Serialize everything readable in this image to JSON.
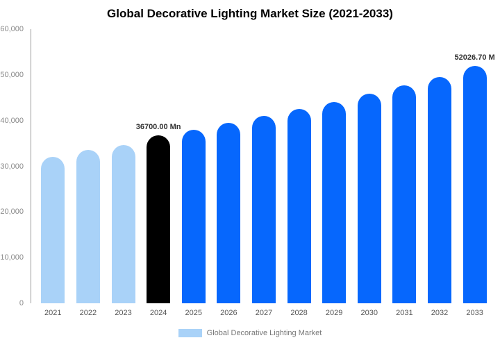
{
  "title": "Global Decorative Lighting Market Size (2021-2033)",
  "legend": {
    "label": "Global Decorative Lighting Market",
    "swatch_color": "#a9d2f8"
  },
  "colors": {
    "historical": "#a9d2f8",
    "highlight": "#000000",
    "forecast": "#0667fd"
  },
  "chart_data": {
    "type": "bar",
    "title": "Global Decorative Lighting Market Size (2021-2033)",
    "xlabel": "",
    "ylabel": "",
    "ylim": [
      0,
      60000
    ],
    "grid": false,
    "legend_position": "bottom",
    "categories": [
      "2021",
      "2022",
      "2023",
      "2024",
      "2025",
      "2026",
      "2027",
      "2028",
      "2029",
      "2030",
      "2031",
      "2032",
      "2033"
    ],
    "values": [
      32000,
      33500,
      34700,
      36700,
      38000,
      39500,
      41000,
      42500,
      44000,
      45900,
      47700,
      49500,
      52026.7
    ],
    "bar_colors": [
      "#a9d2f8",
      "#a9d2f8",
      "#a9d2f8",
      "#000000",
      "#0667fd",
      "#0667fd",
      "#0667fd",
      "#0667fd",
      "#0667fd",
      "#0667fd",
      "#0667fd",
      "#0667fd",
      "#0667fd"
    ],
    "yticks": [
      "60,000",
      "50,000",
      "40,000",
      "30,000",
      "20,000",
      "10,000",
      "0"
    ],
    "annotations": [
      {
        "category": "2024",
        "text": "36700.00 Mn"
      },
      {
        "category": "2033",
        "text": "52026.70 M"
      }
    ],
    "series_name": "Global Decorative Lighting Market"
  }
}
